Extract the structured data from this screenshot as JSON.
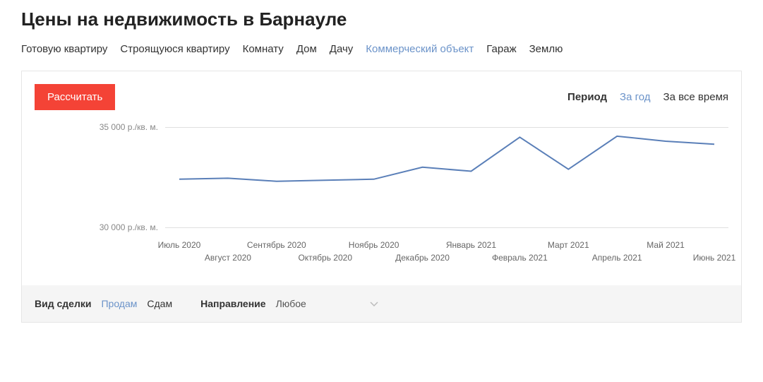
{
  "title": "Цены на недвижимость в Барнауле",
  "tabs": [
    {
      "label": "Готовую квартиру",
      "active": false
    },
    {
      "label": "Строящуюся квартиру",
      "active": false
    },
    {
      "label": "Комнату",
      "active": false
    },
    {
      "label": "Дом",
      "active": false
    },
    {
      "label": "Дачу",
      "active": false
    },
    {
      "label": "Коммерческий объект",
      "active": true
    },
    {
      "label": "Гараж",
      "active": false
    },
    {
      "label": "Землю",
      "active": false
    }
  ],
  "calc_button": "Рассчитать",
  "period": {
    "label": "Период",
    "options": [
      {
        "label": "За год",
        "active": true
      },
      {
        "label": "За все время",
        "active": false
      }
    ]
  },
  "chart": {
    "type": "line",
    "y_unit": "р./кв. м.",
    "ylim": [
      29500,
      35500
    ],
    "yticks": [
      {
        "value": 35000,
        "label": "35 000 р./кв. м."
      },
      {
        "value": 30000,
        "label": "30 000 р./кв. м."
      }
    ],
    "x_categories": [
      "Июль 2020",
      "Август 2020",
      "Сентябрь 2020",
      "Октябрь 2020",
      "Ноябрь 2020",
      "Декабрь 2020",
      "Январь 2021",
      "Февраль 2021",
      "Март 2021",
      "Апрель 2021",
      "Май 2021",
      "Июнь 2021"
    ],
    "values": [
      32400,
      32450,
      32300,
      32350,
      32400,
      33000,
      32800,
      34500,
      32900,
      34550,
      34300,
      34150
    ],
    "line_color": "#5a7fb8",
    "line_width": 2,
    "grid_color": "#e0e0e0",
    "background_color": "#ffffff",
    "axis_label_fontsize": 12,
    "axis_label_color": "#888888"
  },
  "filters": {
    "deal_type": {
      "label": "Вид сделки",
      "options": [
        {
          "label": "Продам",
          "active": true
        },
        {
          "label": "Сдам",
          "active": false
        }
      ]
    },
    "direction": {
      "label": "Направление",
      "selected": "Любое"
    }
  },
  "colors": {
    "accent_red": "#f44336",
    "accent_blue": "#6b93c9",
    "text": "#333333",
    "muted": "#888888",
    "panel_border": "#e6e6e6",
    "filter_bg": "#f5f5f5"
  }
}
